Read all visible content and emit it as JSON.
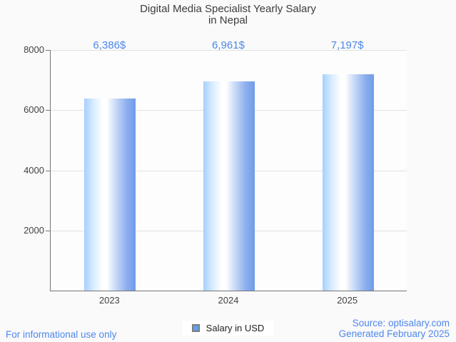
{
  "title": {
    "line1": "Digital Media Specialist Yearly Salary",
    "line2": "in Nepal"
  },
  "chart_data": {
    "type": "bar",
    "categories": [
      "2023",
      "2024",
      "2025"
    ],
    "series": [
      {
        "name": "Salary in USD",
        "values": [
          6386,
          6961,
          7197
        ]
      }
    ],
    "value_labels": [
      "6,386$",
      "6,961$",
      "7,197$"
    ],
    "title": "Digital Media Specialist Yearly Salary in Nepal",
    "xlabel": "",
    "ylabel": "",
    "ylim": [
      0,
      8000
    ],
    "yticks": [
      2000,
      4000,
      6000,
      8000
    ],
    "grid": "horizontal",
    "legend_position": "bottom-center",
    "bar_gradient": [
      "#a6d0fe",
      "#ffffff",
      "#6f9ce8"
    ]
  },
  "legend": {
    "label": "Salary in USD",
    "swatch_fill": "#63a0f0",
    "swatch_border": "#7e7e7e"
  },
  "footer": {
    "left": "For informational use only",
    "source": "Source: optisalary.com",
    "generated": "Generated February 2025"
  },
  "colors": {
    "accent_blue": "#4e87ec",
    "axis": "#757575",
    "gridline": "#e1e1e1",
    "text": "#424242",
    "background": "#fafafa"
  }
}
